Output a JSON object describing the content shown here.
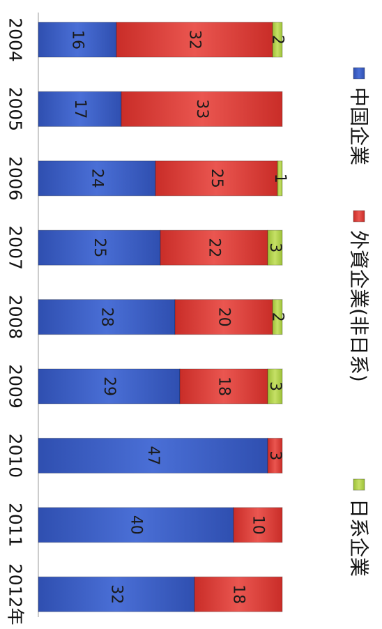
{
  "chart_data": {
    "type": "bar",
    "stacked": true,
    "orientation": "rotated-90-clockwise",
    "categories": [
      "2004",
      "2005",
      "2006",
      "2007",
      "2008",
      "2009",
      "2010",
      "2011",
      "2012年"
    ],
    "series": [
      {
        "name": "中国企業",
        "color": "#3c5fc4",
        "values": [
          16,
          17,
          24,
          25,
          28,
          29,
          47,
          40,
          32
        ]
      },
      {
        "name": "外資企業(非日系)",
        "color": "#e0403a",
        "values": [
          32,
          33,
          25,
          22,
          20,
          18,
          3,
          10,
          18
        ]
      },
      {
        "name": "日系企業",
        "color": "#b7d64c",
        "values": [
          2,
          null,
          1,
          3,
          2,
          3,
          null,
          null,
          null
        ]
      }
    ],
    "title": "",
    "xlabel": "",
    "ylabel": "",
    "legend_position": "right",
    "grid": false
  }
}
